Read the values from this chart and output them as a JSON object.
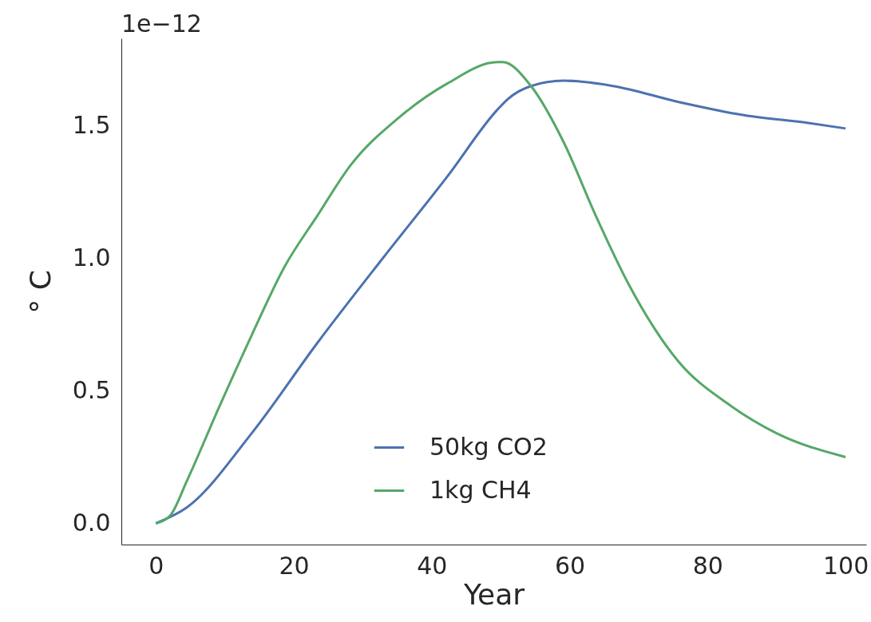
{
  "chart_data": {
    "type": "line",
    "xlabel": "Year",
    "ylabel": "° C",
    "annotations": [
      "1e−12"
    ],
    "xlim": [
      -5,
      103
    ],
    "xticks": [
      0,
      20,
      40,
      60,
      80,
      100
    ],
    "ylim": [
      -0.08,
      1.83
    ],
    "yticks": [
      {
        "value": 0,
        "label": "0.0"
      },
      {
        "value": 0.5,
        "label": "0.5"
      },
      {
        "value": 1,
        "label": "1.0"
      },
      {
        "value": 1.5,
        "label": "1.5"
      }
    ],
    "grid": false,
    "legend": "bottom",
    "line_style": "solid",
    "marker": "none",
    "series": [
      {
        "name": "50kg CO2",
        "color": "#4c72b0",
        "x": [
          0,
          4.5,
          13.9,
          23.4,
          32.9,
          42.3,
          49.5,
          51,
          54.4,
          59.1,
          66.3,
          75.8,
          85.3,
          94.8,
          100
        ],
        "values": [
          0,
          0.06,
          0.34,
          0.68,
          1.0,
          1.31,
          1.56,
          1.6,
          1.65,
          1.67,
          1.65,
          1.59,
          1.54,
          1.51,
          1.49
        ]
      },
      {
        "name": "1kg CH4",
        "color": "#55a868",
        "x": [
          0,
          2.1,
          4.5,
          9.2,
          13.9,
          18.7,
          23.4,
          28.2,
          35.2,
          42.3,
          49.5,
          50.3,
          54.4,
          59.1,
          63.8,
          68.6,
          75.8,
          83,
          90,
          100
        ],
        "values": [
          0,
          0.03,
          0.16,
          0.44,
          0.71,
          0.97,
          1.16,
          1.35,
          1.53,
          1.66,
          1.74,
          1.74,
          1.65,
          1.44,
          1.16,
          0.9,
          0.61,
          0.45,
          0.34,
          0.25
        ]
      }
    ]
  }
}
